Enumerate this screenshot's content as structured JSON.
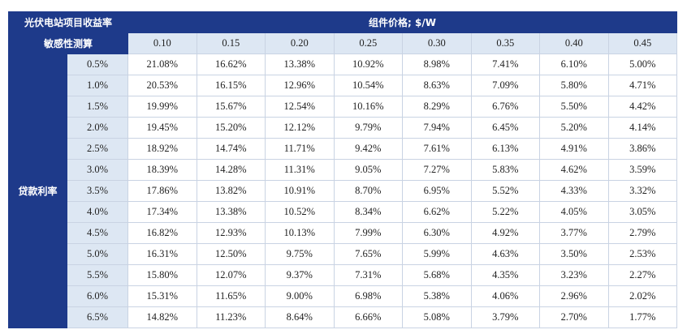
{
  "header": {
    "title": "光伏电站项目收益率",
    "subtitle": "敏感性测算",
    "column_group": "组件价格; $/W",
    "row_group": "贷款利率"
  },
  "table": {
    "columns": [
      "0.10",
      "0.15",
      "0.20",
      "0.25",
      "0.30",
      "0.35",
      "0.40",
      "0.45"
    ],
    "rows": [
      {
        "label": "0.5%",
        "cells": [
          "21.08%",
          "16.62%",
          "13.38%",
          "10.92%",
          "8.98%",
          "7.41%",
          "6.10%",
          "5.00%"
        ]
      },
      {
        "label": "1.0%",
        "cells": [
          "20.53%",
          "16.15%",
          "12.96%",
          "10.54%",
          "8.63%",
          "7.09%",
          "5.80%",
          "4.71%"
        ]
      },
      {
        "label": "1.5%",
        "cells": [
          "19.99%",
          "15.67%",
          "12.54%",
          "10.16%",
          "8.29%",
          "6.76%",
          "5.50%",
          "4.42%"
        ]
      },
      {
        "label": "2.0%",
        "cells": [
          "19.45%",
          "15.20%",
          "12.12%",
          "9.79%",
          "7.94%",
          "6.45%",
          "5.20%",
          "4.14%"
        ]
      },
      {
        "label": "2.5%",
        "cells": [
          "18.92%",
          "14.74%",
          "11.71%",
          "9.42%",
          "7.61%",
          "6.13%",
          "4.91%",
          "3.86%"
        ]
      },
      {
        "label": "3.0%",
        "cells": [
          "18.39%",
          "14.28%",
          "11.31%",
          "9.05%",
          "7.27%",
          "5.83%",
          "4.62%",
          "3.59%"
        ]
      },
      {
        "label": "3.5%",
        "cells": [
          "17.86%",
          "13.82%",
          "10.91%",
          "8.70%",
          "6.95%",
          "5.52%",
          "4.33%",
          "3.32%"
        ]
      },
      {
        "label": "4.0%",
        "cells": [
          "17.34%",
          "13.38%",
          "10.52%",
          "8.34%",
          "6.62%",
          "5.22%",
          "4.05%",
          "3.05%"
        ]
      },
      {
        "label": "4.5%",
        "cells": [
          "16.82%",
          "12.93%",
          "10.13%",
          "7.99%",
          "6.30%",
          "4.92%",
          "3.77%",
          "2.79%"
        ]
      },
      {
        "label": "5.0%",
        "cells": [
          "16.31%",
          "12.50%",
          "9.75%",
          "7.65%",
          "5.99%",
          "4.63%",
          "3.50%",
          "2.53%"
        ]
      },
      {
        "label": "5.5%",
        "cells": [
          "15.80%",
          "12.07%",
          "9.37%",
          "7.31%",
          "5.68%",
          "4.35%",
          "3.23%",
          "2.27%"
        ]
      },
      {
        "label": "6.0%",
        "cells": [
          "15.31%",
          "11.65%",
          "9.00%",
          "6.98%",
          "5.38%",
          "4.06%",
          "2.96%",
          "2.02%"
        ]
      },
      {
        "label": "6.5%",
        "cells": [
          "14.82%",
          "11.23%",
          "8.64%",
          "6.66%",
          "5.08%",
          "3.79%",
          "2.70%",
          "1.77%"
        ]
      }
    ]
  }
}
